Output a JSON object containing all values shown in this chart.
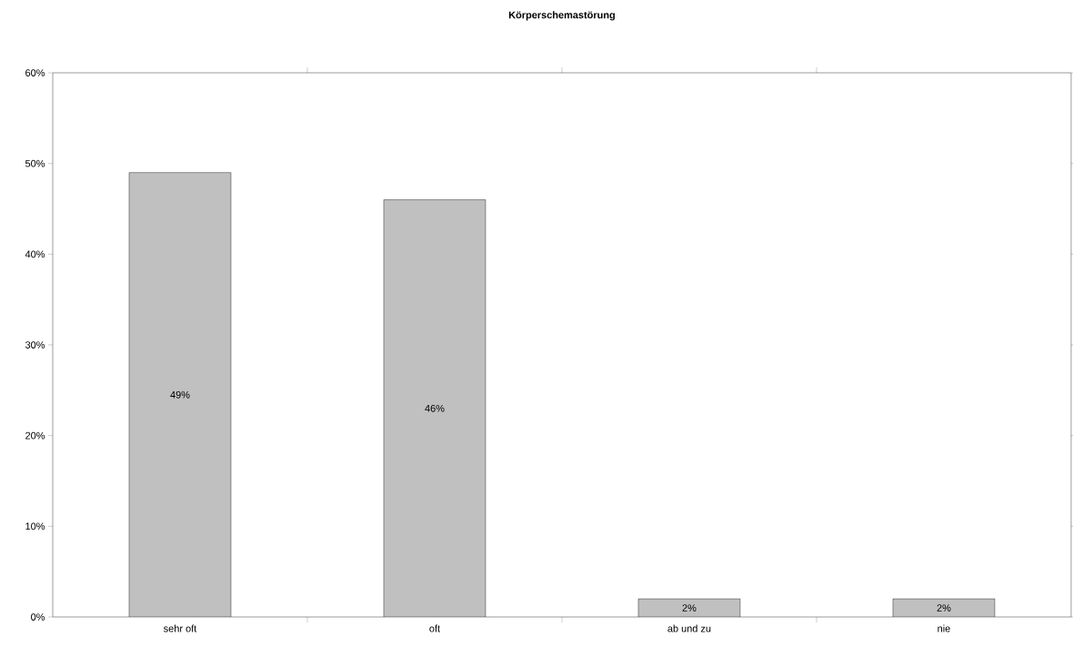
{
  "chart_data": {
    "type": "bar",
    "title": "Körperschemastörung",
    "categories": [
      "sehr oft",
      "oft",
      "ab und zu",
      "nie"
    ],
    "values": [
      49,
      46,
      2,
      2
    ],
    "color": "#c0c0c0",
    "value_labels": [
      "49%",
      "46%",
      "2%",
      "2%"
    ],
    "ylim": [
      0,
      60
    ],
    "yticks": [
      {
        "value": 0,
        "label": "0%"
      },
      {
        "value": 10,
        "label": "10%"
      },
      {
        "value": 20,
        "label": "20%"
      },
      {
        "value": 30,
        "label": "30%"
      },
      {
        "value": 40,
        "label": "40%"
      },
      {
        "value": 50,
        "label": "50%"
      },
      {
        "value": 60,
        "label": "60%"
      }
    ],
    "grid": false
  }
}
